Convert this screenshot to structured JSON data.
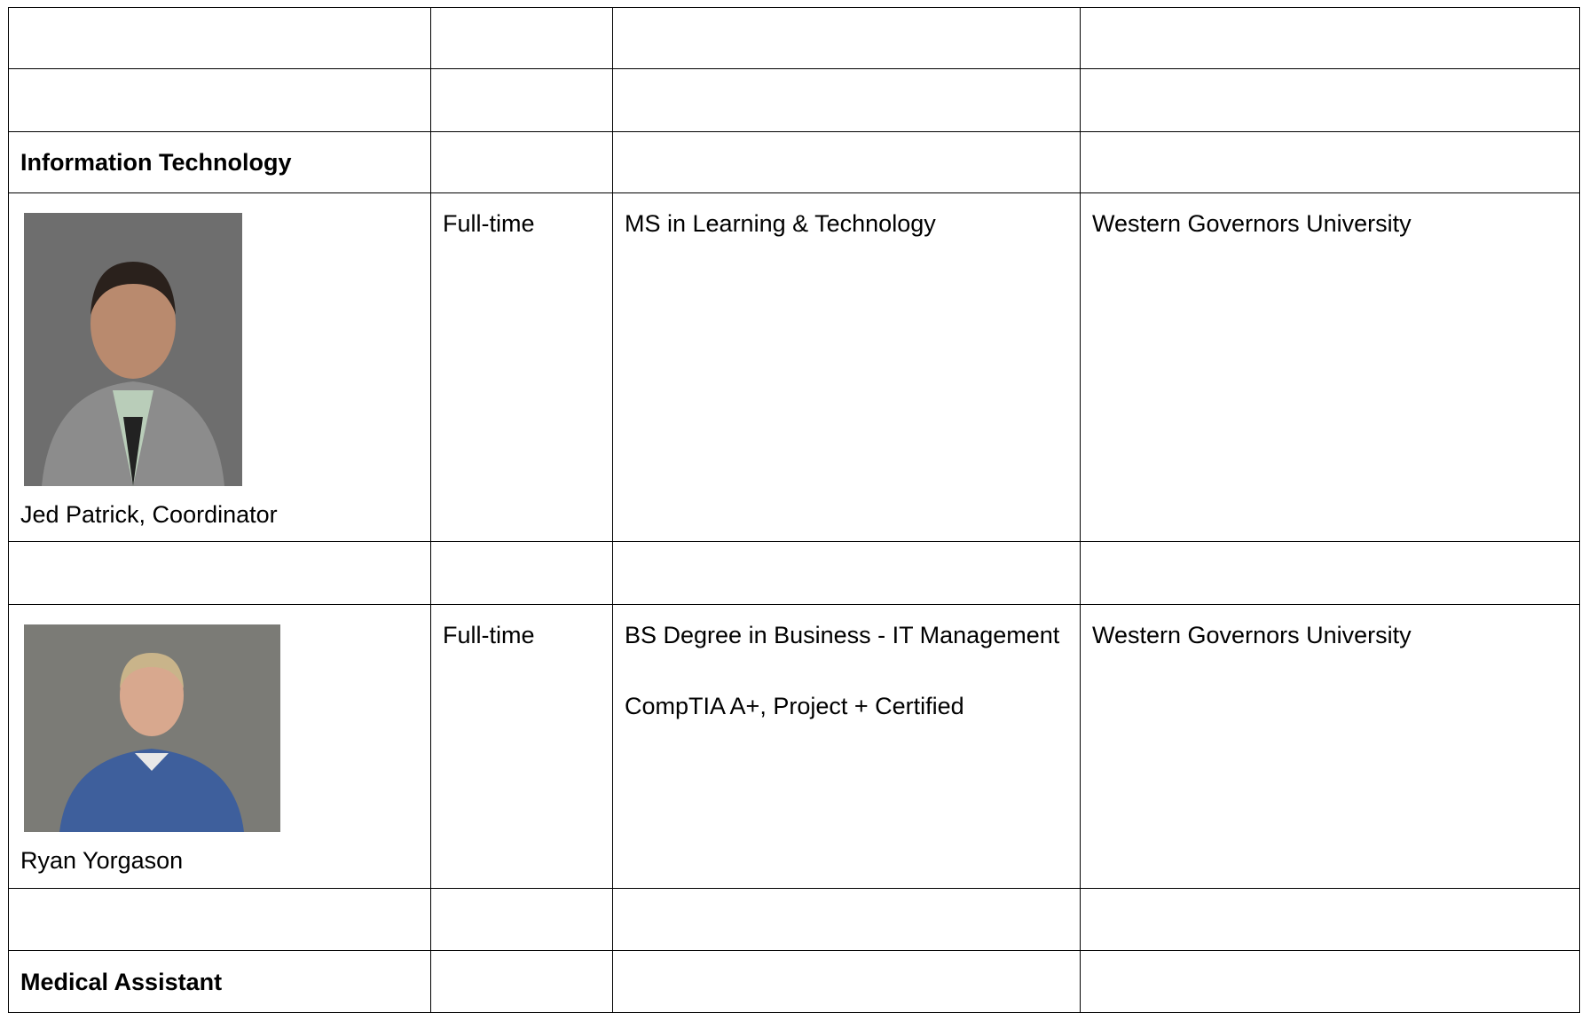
{
  "table": {
    "rows": [
      {
        "section": "Information Technology"
      },
      {
        "name": "Jed Patrick, Coordinator",
        "status": "Full-time",
        "credentials": [
          "MS in Learning & Technology"
        ],
        "school": "Western Governors University"
      },
      {
        "name": "Ryan Yorgason",
        "status": "Full-time",
        "credentials": [
          "BS Degree in Business - IT Management",
          "CompTIA A+, Project + Certified"
        ],
        "school": "Western Governors University"
      },
      {
        "section": "Medical Assistant"
      }
    ]
  }
}
